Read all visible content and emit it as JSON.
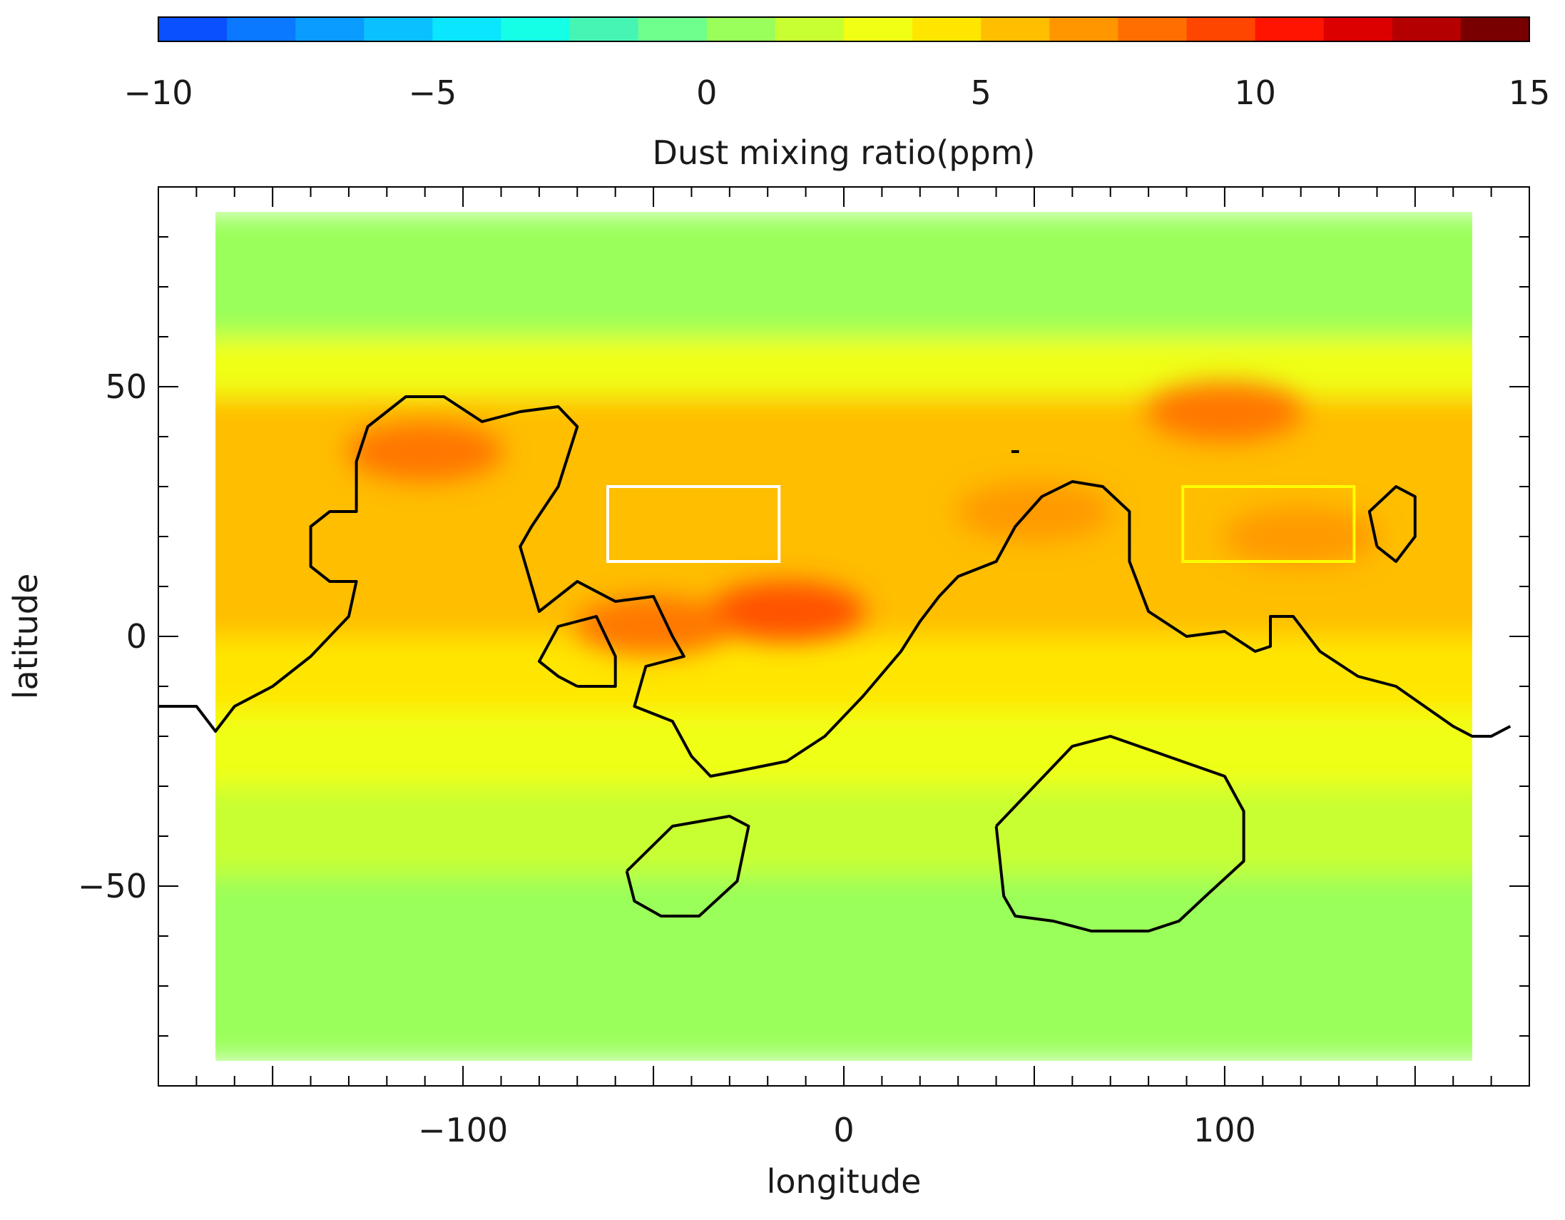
{
  "chart_data": {
    "type": "heatmap",
    "title": "",
    "colorbar": {
      "label": "Dust mixing ratio(ppm)",
      "range": [
        -10,
        15
      ],
      "ticks": [
        -10,
        -5,
        0,
        5,
        10,
        15
      ],
      "tick_labels": [
        "−10",
        "−5",
        "0",
        "5",
        "10",
        "15"
      ],
      "colors": [
        "#0a50ff",
        "#0a78ff",
        "#0a9cff",
        "#0ac0ff",
        "#0ae6ff",
        "#14ffe6",
        "#46f5b4",
        "#6eff8c",
        "#9aff5a",
        "#c8ff32",
        "#f0ff14",
        "#ffe600",
        "#ffbe00",
        "#ff9600",
        "#ff6e00",
        "#ff4600",
        "#ff1400",
        "#dc0000",
        "#b40000",
        "#780000"
      ]
    },
    "xlabel": "longitude",
    "ylabel": "latitude",
    "xlim": [
      -180,
      180
    ],
    "ylim": [
      -90,
      90
    ],
    "x_ticks": [
      -100,
      0,
      100
    ],
    "x_tick_labels": [
      "−100",
      "0",
      "100"
    ],
    "y_ticks": [
      -50,
      0,
      50
    ],
    "y_tick_labels": [
      "−50",
      "0",
      "50"
    ],
    "grid": false,
    "data_extent": {
      "lon": [
        -165,
        165
      ],
      "lat": [
        -85,
        85
      ]
    },
    "lat_bands": [
      {
        "lat": [
          60,
          85
        ],
        "value": 0
      },
      {
        "lat": [
          48,
          60
        ],
        "value": 2.5
      },
      {
        "lat": [
          40,
          48
        ],
        "value": 5
      },
      {
        "lat": [
          15,
          40
        ],
        "value": 6
      },
      {
        "lat": [
          0,
          15
        ],
        "value": 6
      },
      {
        "lat": [
          -15,
          0
        ],
        "value": 4
      },
      {
        "lat": [
          -30,
          -15
        ],
        "value": 3
      },
      {
        "lat": [
          -48,
          -30
        ],
        "value": 1.5
      },
      {
        "lat": [
          -85,
          -48
        ],
        "value": 0
      }
    ],
    "hotspots": [
      {
        "lon": -110,
        "lat": 37,
        "value": 8.5
      },
      {
        "lon": -15,
        "lat": 5,
        "value": 9.5
      },
      {
        "lon": -50,
        "lat": 2,
        "value": 7.5
      },
      {
        "lon": 100,
        "lat": 45,
        "value": 7.5
      },
      {
        "lon": 120,
        "lat": 20,
        "value": 7
      },
      {
        "lon": 50,
        "lat": 25,
        "value": 7
      }
    ],
    "regions": [
      {
        "lon": [
          -62,
          -17
        ],
        "lat": [
          15,
          30
        ],
        "color": "#ffffff"
      },
      {
        "lon": [
          89,
          134
        ],
        "lat": [
          15,
          30
        ],
        "color": "#ffff00"
      }
    ],
    "contours": [
      [
        [
          -180,
          -14
        ],
        [
          -170,
          -14
        ],
        [
          -165,
          -19
        ],
        [
          -160,
          -14
        ],
        [
          -150,
          -10
        ],
        [
          -140,
          -4
        ],
        [
          -130,
          4
        ],
        [
          -128,
          11
        ],
        [
          -135,
          11
        ],
        [
          -140,
          14
        ],
        [
          -140,
          22
        ],
        [
          -135,
          25
        ],
        [
          -128,
          25
        ],
        [
          -128,
          35
        ],
        [
          -125,
          42
        ],
        [
          -115,
          48
        ],
        [
          -105,
          48
        ],
        [
          -95,
          43
        ],
        [
          -85,
          45
        ],
        [
          -75,
          46
        ],
        [
          -70,
          42
        ],
        [
          -75,
          30
        ],
        [
          -82,
          22
        ],
        [
          -85,
          18
        ],
        [
          -80,
          5
        ],
        [
          -70,
          11
        ],
        [
          -60,
          7
        ],
        [
          -50,
          8
        ],
        [
          -45,
          0
        ],
        [
          -42,
          -4
        ],
        [
          -52,
          -6
        ],
        [
          -55,
          -14
        ],
        [
          -45,
          -17
        ],
        [
          -40,
          -24
        ],
        [
          -35,
          -28
        ],
        [
          -28,
          -27
        ],
        [
          -15,
          -25
        ],
        [
          -5,
          -20
        ],
        [
          5,
          -12
        ],
        [
          15,
          -3
        ],
        [
          20,
          3
        ],
        [
          25,
          8
        ],
        [
          30,
          12
        ],
        [
          40,
          15
        ],
        [
          45,
          22
        ],
        [
          52,
          28
        ],
        [
          60,
          31
        ],
        [
          68,
          30
        ],
        [
          75,
          25
        ],
        [
          75,
          15
        ],
        [
          80,
          5
        ],
        [
          90,
          0
        ],
        [
          100,
          1
        ],
        [
          108,
          -3
        ],
        [
          112,
          -2
        ],
        [
          112,
          4
        ],
        [
          118,
          4
        ],
        [
          125,
          -3
        ],
        [
          135,
          -8
        ],
        [
          145,
          -10
        ],
        [
          160,
          -18
        ],
        [
          165,
          -20
        ],
        [
          170,
          -20
        ],
        [
          175,
          -18
        ]
      ],
      [
        [
          -70,
          -10
        ],
        [
          -75,
          -8
        ],
        [
          -80,
          -5
        ],
        [
          -75,
          2
        ],
        [
          -65,
          4
        ],
        [
          -60,
          -4
        ],
        [
          -60,
          -10
        ],
        [
          -70,
          -10
        ]
      ],
      [
        [
          -57,
          -47
        ],
        [
          -55,
          -53
        ],
        [
          -48,
          -56
        ],
        [
          -38,
          -56
        ],
        [
          -28,
          -49
        ],
        [
          -25,
          -38
        ],
        [
          -30,
          -36
        ],
        [
          -45,
          -38
        ],
        [
          -57,
          -47
        ]
      ],
      [
        [
          40,
          -38
        ],
        [
          42,
          -52
        ],
        [
          45,
          -56
        ],
        [
          55,
          -57
        ],
        [
          65,
          -59
        ],
        [
          80,
          -59
        ],
        [
          88,
          -57
        ],
        [
          95,
          -52
        ],
        [
          105,
          -45
        ],
        [
          105,
          -35
        ],
        [
          100,
          -28
        ],
        [
          85,
          -24
        ],
        [
          70,
          -20
        ],
        [
          60,
          -22
        ],
        [
          50,
          -30
        ],
        [
          40,
          -38
        ]
      ],
      [
        [
          140,
          18
        ],
        [
          145,
          15
        ],
        [
          150,
          20
        ],
        [
          150,
          28
        ],
        [
          145,
          30
        ],
        [
          138,
          25
        ],
        [
          140,
          18
        ]
      ],
      [
        [
          44,
          37
        ],
        [
          46,
          37
        ]
      ]
    ]
  }
}
